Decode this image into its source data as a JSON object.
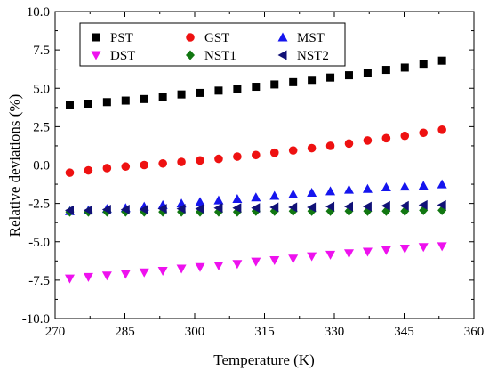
{
  "chart_data": {
    "type": "scatter",
    "xlabel": "Temperature (K)",
    "ylabel": "Relative deviations (%)",
    "xlim": [
      270,
      360
    ],
    "ylim": [
      -10.0,
      10.0
    ],
    "x_ticks": [
      270,
      285,
      300,
      315,
      330,
      345,
      360
    ],
    "x_tick_labels": [
      "270",
      "285",
      "300",
      "315",
      "330",
      "345",
      "360"
    ],
    "y_ticks": [
      -10,
      -7.5,
      -5,
      -2.5,
      0,
      2.5,
      5,
      7.5,
      10
    ],
    "y_tick_labels": [
      "-10.0",
      "-7.5",
      "-5.0",
      "-2.5",
      "0.0",
      "2.5",
      "5.0",
      "7.5",
      "10.0"
    ],
    "reference_line_y": 0,
    "grid": false,
    "legend_position": "top-left",
    "x": [
      273.15,
      277.15,
      281.15,
      285.15,
      289.15,
      293.15,
      297.15,
      301.15,
      305.15,
      309.15,
      313.15,
      317.15,
      321.15,
      325.15,
      329.15,
      333.15,
      337.15,
      341.15,
      345.15,
      349.15,
      353.15
    ],
    "series": [
      {
        "name": "PST",
        "marker": "square",
        "color": "#000000",
        "values": [
          3.9,
          4.0,
          4.1,
          4.2,
          4.3,
          4.45,
          4.6,
          4.7,
          4.85,
          4.95,
          5.1,
          5.25,
          5.4,
          5.55,
          5.7,
          5.85,
          6.0,
          6.2,
          6.35,
          6.6,
          6.8
        ]
      },
      {
        "name": "GST",
        "marker": "circle",
        "color": "#ee1111",
        "values": [
          -0.5,
          -0.35,
          -0.2,
          -0.1,
          0.0,
          0.1,
          0.2,
          0.3,
          0.4,
          0.55,
          0.65,
          0.8,
          0.95,
          1.1,
          1.25,
          1.4,
          1.6,
          1.75,
          1.9,
          2.1,
          2.3
        ]
      },
      {
        "name": "MST",
        "marker": "triangle-up",
        "color": "#1515ee",
        "values": [
          -3.0,
          -2.95,
          -2.85,
          -2.8,
          -2.7,
          -2.6,
          -2.5,
          -2.4,
          -2.3,
          -2.2,
          -2.1,
          -2.0,
          -1.9,
          -1.8,
          -1.7,
          -1.6,
          -1.55,
          -1.45,
          -1.4,
          -1.35,
          -1.25
        ]
      },
      {
        "name": "DST",
        "marker": "triangle-down",
        "color": "#ee11ee",
        "values": [
          -7.4,
          -7.3,
          -7.2,
          -7.1,
          -7.0,
          -6.9,
          -6.75,
          -6.65,
          -6.55,
          -6.45,
          -6.3,
          -6.2,
          -6.1,
          -5.95,
          -5.85,
          -5.75,
          -5.65,
          -5.55,
          -5.45,
          -5.35,
          -5.3
        ]
      },
      {
        "name": "NST1",
        "marker": "diamond",
        "color": "#117711",
        "values": [
          -3.05,
          -3.05,
          -3.05,
          -3.05,
          -3.05,
          -3.05,
          -3.05,
          -3.05,
          -3.05,
          -3.05,
          -3.0,
          -3.0,
          -3.0,
          -3.0,
          -3.0,
          -3.0,
          -3.0,
          -3.0,
          -3.0,
          -2.95,
          -2.95
        ]
      },
      {
        "name": "NST2",
        "marker": "triangle-left",
        "color": "#111177",
        "values": [
          -2.95,
          -2.95,
          -2.9,
          -2.9,
          -2.9,
          -2.85,
          -2.85,
          -2.85,
          -2.8,
          -2.8,
          -2.8,
          -2.75,
          -2.75,
          -2.75,
          -2.7,
          -2.7,
          -2.7,
          -2.65,
          -2.65,
          -2.6,
          -2.6
        ]
      }
    ]
  }
}
